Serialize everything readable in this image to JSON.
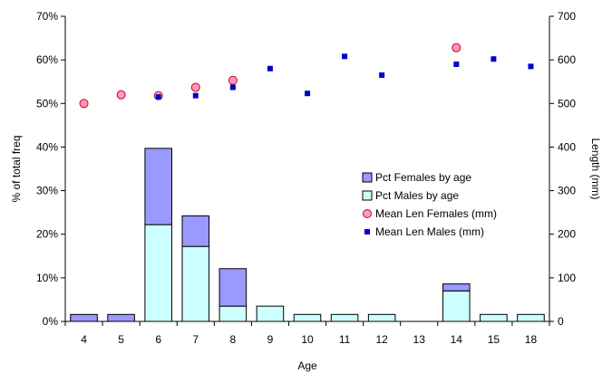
{
  "chart_data": {
    "type": "bar+scatter",
    "categories": [
      "4",
      "5",
      "6",
      "7",
      "8",
      "9",
      "10",
      "11",
      "12",
      "13",
      "14",
      "15",
      "18"
    ],
    "xlabel": "Age",
    "ylabel_left": "% of total freq",
    "ylabel_right": "Length (mm)",
    "ylim_left": [
      0,
      0.7
    ],
    "yticks_left": [
      "0%",
      "10%",
      "20%",
      "30%",
      "40%",
      "50%",
      "60%",
      "70%"
    ],
    "ylim_right": [
      0,
      700
    ],
    "yticks_right": [
      "0",
      "100",
      "200",
      "300",
      "400",
      "500",
      "600",
      "700"
    ],
    "bar_series": [
      {
        "name": "Pct Males by age",
        "color": "#ccffff",
        "values": [
          0,
          0,
          0.222,
          0.172,
          0.035,
          0.035,
          0.016,
          0.016,
          0.016,
          0,
          0.07,
          0.016,
          0.016
        ]
      },
      {
        "name": "Pct Females by age",
        "color": "#9999ff",
        "values": [
          0.016,
          0.016,
          0.175,
          0.07,
          0.086,
          0,
          0,
          0,
          0,
          0,
          0.016,
          0,
          0
        ]
      }
    ],
    "point_series": [
      {
        "name": "Mean Len Females (mm)",
        "color": "#ff99cc",
        "marker": "circle",
        "values": [
          500,
          520,
          518,
          537,
          553,
          null,
          null,
          null,
          null,
          null,
          628,
          null,
          null
        ]
      },
      {
        "name": "Mean Len Males (mm)",
        "color": "#0000cc",
        "marker": "square",
        "values": [
          null,
          null,
          515,
          518,
          537,
          580,
          523,
          608,
          565,
          null,
          590,
          602,
          585
        ]
      }
    ],
    "legend": {
      "position": "right-middle",
      "order": [
        "Pct Females by age",
        "Pct Males by age",
        "Mean Len Females (mm)",
        "Mean Len Males (mm)"
      ]
    }
  }
}
